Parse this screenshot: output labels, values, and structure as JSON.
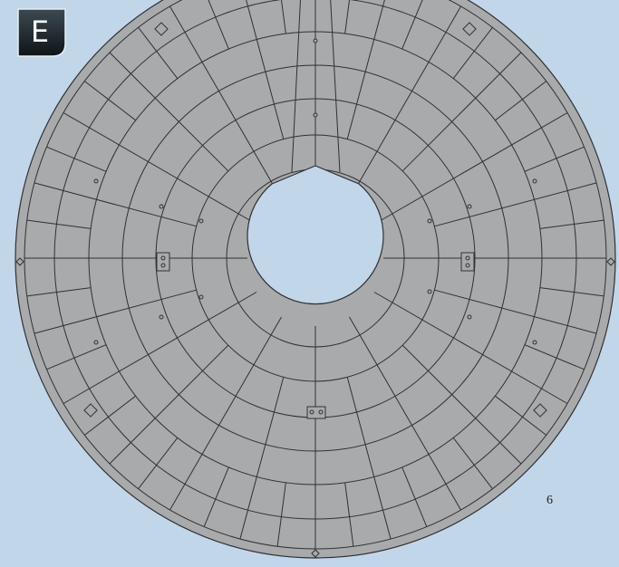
{
  "badge": "E",
  "label": "6"
}
